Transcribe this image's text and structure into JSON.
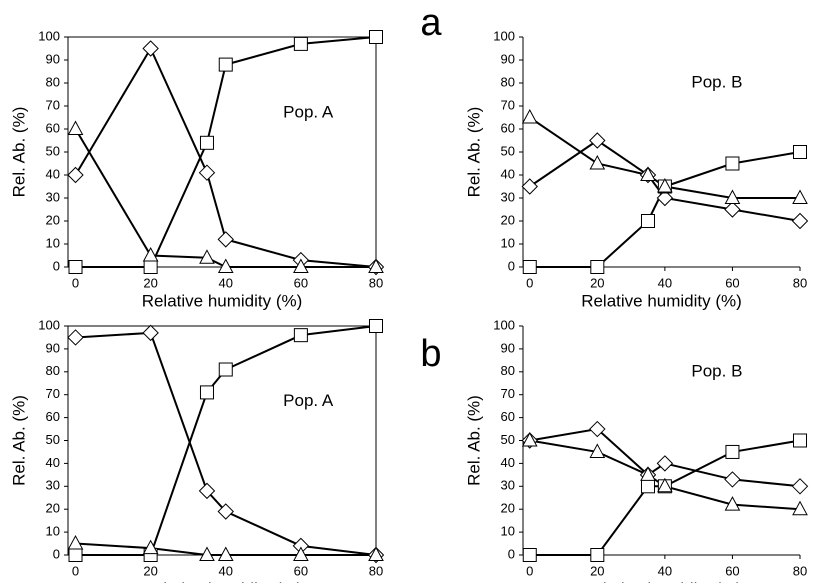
{
  "panel_labels": [
    "a",
    "b"
  ],
  "chart_data": [
    {
      "type": "line",
      "annotation": "Pop. A",
      "x_label": "Relative humidity (%)",
      "y_label": "Rel. Ab. (%)",
      "frame": true,
      "x": [
        0,
        20,
        35,
        40,
        60,
        80
      ],
      "xlim": [
        -2,
        80
      ],
      "xticks": [
        0,
        20,
        40,
        60,
        80
      ],
      "ylim": [
        0,
        100
      ],
      "yticks": [
        0,
        10,
        20,
        30,
        40,
        50,
        60,
        70,
        80,
        90,
        100
      ],
      "series": [
        {
          "marker": "diamond",
          "color": "#000000",
          "values": [
            40,
            95,
            41,
            12,
            3,
            0
          ]
        },
        {
          "marker": "square",
          "color": "#000000",
          "values": [
            0,
            0,
            54,
            88,
            97,
            100
          ]
        },
        {
          "marker": "triangle",
          "color": "#000000",
          "values": [
            60,
            5,
            4,
            0,
            0,
            0
          ]
        }
      ]
    },
    {
      "type": "line",
      "annotation": "Pop. B",
      "x_label": "Relative humidity (%)",
      "y_label": "Rel. Ab. (%)",
      "frame": false,
      "x": [
        0,
        20,
        35,
        40,
        60,
        80
      ],
      "xlim": [
        -2,
        80
      ],
      "xticks": [
        0,
        20,
        40,
        60,
        80
      ],
      "ylim": [
        0,
        100
      ],
      "yticks": [
        0,
        10,
        20,
        30,
        40,
        50,
        60,
        70,
        80,
        90,
        100
      ],
      "series": [
        {
          "marker": "diamond",
          "color": "#000000",
          "values": [
            35,
            55,
            40,
            30,
            25,
            20
          ]
        },
        {
          "marker": "square",
          "color": "#000000",
          "values": [
            0,
            0,
            20,
            35,
            45,
            50
          ]
        },
        {
          "marker": "triangle",
          "color": "#000000",
          "values": [
            65,
            45,
            40,
            35,
            30,
            30
          ]
        }
      ]
    },
    {
      "type": "line",
      "annotation": "Pop. A",
      "x_label": "Relative humidity (%)",
      "y_label": "Rel. Ab. (%)",
      "frame": true,
      "x": [
        0,
        20,
        35,
        40,
        60,
        80
      ],
      "xlim": [
        -2,
        80
      ],
      "xticks": [
        0,
        20,
        40,
        60,
        80
      ],
      "ylim": [
        0,
        100
      ],
      "yticks": [
        0,
        10,
        20,
        30,
        40,
        50,
        60,
        70,
        80,
        90,
        100
      ],
      "series": [
        {
          "marker": "diamond",
          "color": "#000000",
          "values": [
            95,
            97,
            28,
            19,
            4,
            0
          ]
        },
        {
          "marker": "square",
          "color": "#000000",
          "values": [
            0,
            0,
            71,
            81,
            96,
            100
          ]
        },
        {
          "marker": "triangle",
          "color": "#000000",
          "values": [
            5,
            3,
            0,
            0,
            0,
            0
          ]
        }
      ]
    },
    {
      "type": "line",
      "annotation": "Pop. B",
      "x_label": "Relative humidity (%)",
      "y_label": "Rel. Ab. (%)",
      "frame": false,
      "x": [
        0,
        20,
        35,
        40,
        60,
        80
      ],
      "xlim": [
        -2,
        80
      ],
      "xticks": [
        0,
        20,
        40,
        60,
        80
      ],
      "ylim": [
        0,
        100
      ],
      "yticks": [
        0,
        10,
        20,
        30,
        40,
        50,
        60,
        70,
        80,
        90,
        100
      ],
      "series": [
        {
          "marker": "diamond",
          "color": "#000000",
          "values": [
            50,
            55,
            35,
            40,
            33,
            30
          ]
        },
        {
          "marker": "square",
          "color": "#000000",
          "values": [
            0,
            0,
            30,
            30,
            45,
            50
          ]
        },
        {
          "marker": "triangle",
          "color": "#000000",
          "values": [
            50,
            45,
            35,
            30,
            22,
            20
          ]
        }
      ]
    }
  ]
}
